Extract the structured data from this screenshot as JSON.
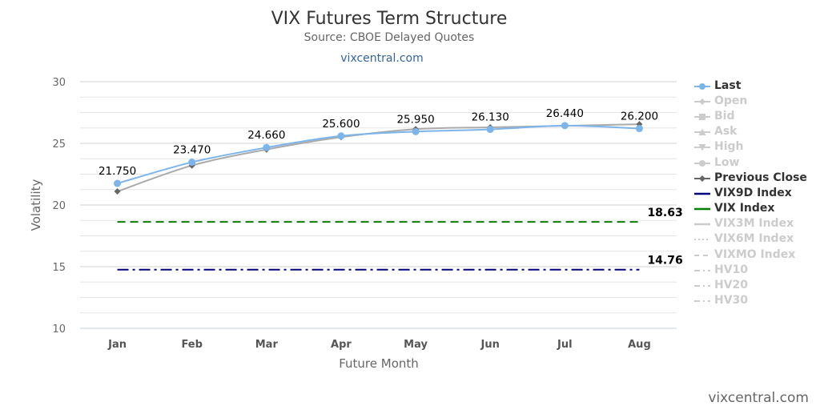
{
  "chart_data": {
    "type": "line",
    "title": "VIX Futures Term Structure",
    "subtitle": "Source: CBOE Delayed Quotes",
    "link_text": "vixcentral.com",
    "xlabel": "Future Month",
    "ylabel": "Volatility",
    "categories": [
      "Jan",
      "Feb",
      "Mar",
      "Apr",
      "May",
      "Jun",
      "Jul",
      "Aug"
    ],
    "ylim": [
      10,
      30
    ],
    "y_ticks": [
      "10",
      "15",
      "20",
      "25",
      "30"
    ],
    "grid": true,
    "legend_position": "right",
    "series": [
      {
        "name": "Last",
        "values": [
          21.75,
          23.47,
          24.66,
          25.6,
          25.95,
          26.13,
          26.44,
          26.2
        ],
        "labels": [
          "21.750",
          "23.470",
          "24.660",
          "25.600",
          "25.950",
          "26.130",
          "26.440",
          "26.200"
        ],
        "color": "#7cb5ec",
        "visible": true,
        "style": "line-marker"
      },
      {
        "name": "Previous Close",
        "values": [
          21.1,
          23.2,
          24.5,
          25.5,
          26.15,
          26.3,
          26.42,
          26.55
        ],
        "color": "#aaaaaa",
        "marker_color": "#666666",
        "visible": true,
        "style": "line-marker"
      },
      {
        "name": "VIX9D Index",
        "constant": 14.76,
        "label": "14.76",
        "color": "#000080",
        "visible": true,
        "style": "dashdot"
      },
      {
        "name": "VIX Index",
        "constant": 18.63,
        "label": "18.63",
        "color": "#008000",
        "visible": true,
        "style": "dash"
      }
    ],
    "legend": [
      {
        "label": "Last",
        "symbol": "line-dot",
        "color": "#7cb5ec",
        "visible": true
      },
      {
        "label": "Open",
        "symbol": "line-diamond",
        "color": "#cccccc",
        "visible": false
      },
      {
        "label": "Bid",
        "symbol": "line-square",
        "color": "#cccccc",
        "visible": false
      },
      {
        "label": "Ask",
        "symbol": "line-triangle",
        "color": "#cccccc",
        "visible": false
      },
      {
        "label": "High",
        "symbol": "line-triangle-down",
        "color": "#cccccc",
        "visible": false
      },
      {
        "label": "Low",
        "symbol": "line-dot",
        "color": "#cccccc",
        "visible": false
      },
      {
        "label": "Previous Close",
        "symbol": "line-diamond",
        "color": "#666666",
        "visible": true
      },
      {
        "label": "VIX9D Index",
        "symbol": "solid",
        "color": "#000080",
        "visible": true
      },
      {
        "label": "VIX Index",
        "symbol": "solid",
        "color": "#008000",
        "visible": true
      },
      {
        "label": "VIX3M Index",
        "symbol": "solid",
        "color": "#cccccc",
        "visible": false
      },
      {
        "label": "VIX6M Index",
        "symbol": "dotted",
        "color": "#cccccc",
        "visible": false
      },
      {
        "label": "VIXMO Index",
        "symbol": "dash",
        "color": "#cccccc",
        "visible": false
      },
      {
        "label": "HV10",
        "symbol": "dashdot",
        "color": "#cccccc",
        "visible": false
      },
      {
        "label": "HV20",
        "symbol": "dashdot",
        "color": "#cccccc",
        "visible": false
      },
      {
        "label": "HV30",
        "symbol": "dashdot",
        "color": "#cccccc",
        "visible": false
      }
    ]
  },
  "footer": {
    "watermark": "vixcentral.com"
  }
}
